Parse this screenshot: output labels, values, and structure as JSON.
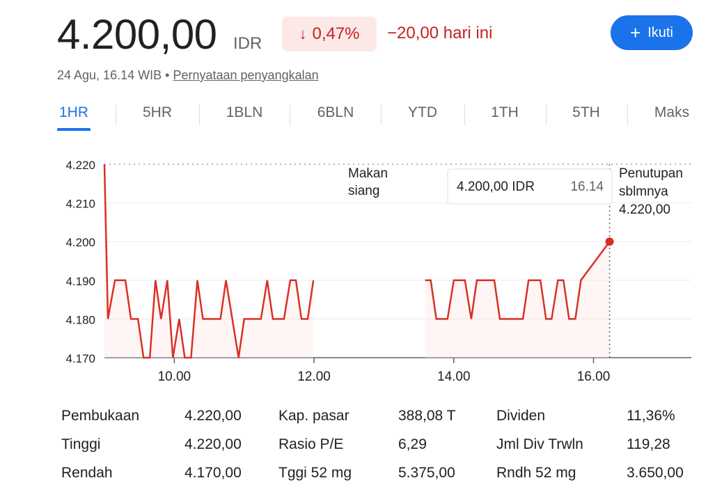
{
  "header": {
    "price": "4.200,00",
    "currency": "IDR",
    "change_percent": "0,47%",
    "change_direction": "down",
    "change_today": "−20,00 hari ini",
    "follow_label": "Ikuti",
    "timestamp": "24 Agu, 16.14 WIB",
    "separator": "•",
    "disclaimer_link": "Pernyataan penyangkalan"
  },
  "tabs": [
    {
      "label": "1HR",
      "active": true
    },
    {
      "label": "5HR"
    },
    {
      "label": "1BLN"
    },
    {
      "label": "6BLN"
    },
    {
      "label": "YTD"
    },
    {
      "label": "1TH"
    },
    {
      "label": "5TH"
    },
    {
      "label": "Maks"
    }
  ],
  "chart_data": {
    "type": "line",
    "y_tick_labels": [
      "4.220",
      "4.210",
      "4.200",
      "4.190",
      "4.180",
      "4.170"
    ],
    "y_ticks": [
      4220,
      4210,
      4200,
      4190,
      4180,
      4170
    ],
    "x_tick_labels": [
      "10.00",
      "12.00",
      "14.00",
      "16.00"
    ],
    "x_ticks": [
      10,
      12,
      14,
      16
    ],
    "xlim": [
      9,
      17.4
    ],
    "ylim": [
      4170,
      4220
    ],
    "line_color": "#d93025",
    "annotations": {
      "lunch": [
        "Makan",
        "siang"
      ],
      "previous_close": [
        "Penutupan",
        "sblmnya",
        "4.220,00"
      ],
      "tooltip_price": "4.200,00 IDR",
      "tooltip_time": "16.14"
    },
    "series_morning": [
      [
        9.0,
        4220
      ],
      [
        9.05,
        4180
      ],
      [
        9.15,
        4190
      ],
      [
        9.3,
        4190
      ],
      [
        9.38,
        4180
      ],
      [
        9.48,
        4180
      ],
      [
        9.56,
        4170
      ],
      [
        9.65,
        4170
      ],
      [
        9.73,
        4190
      ],
      [
        9.81,
        4180
      ],
      [
        9.9,
        4190
      ],
      [
        9.98,
        4170
      ],
      [
        10.07,
        4180
      ],
      [
        10.15,
        4170
      ],
      [
        10.24,
        4170
      ],
      [
        10.33,
        4190
      ],
      [
        10.41,
        4180
      ],
      [
        10.66,
        4180
      ],
      [
        10.74,
        4190
      ],
      [
        10.92,
        4170
      ],
      [
        11.0,
        4180
      ],
      [
        11.24,
        4180
      ],
      [
        11.33,
        4190
      ],
      [
        11.41,
        4180
      ],
      [
        11.57,
        4180
      ],
      [
        11.66,
        4190
      ],
      [
        11.74,
        4190
      ],
      [
        11.82,
        4180
      ],
      [
        11.91,
        4180
      ],
      [
        11.99,
        4190
      ]
    ],
    "series_afternoon": [
      [
        13.59,
        4190
      ],
      [
        13.67,
        4190
      ],
      [
        13.75,
        4180
      ],
      [
        13.91,
        4180
      ],
      [
        14.0,
        4190
      ],
      [
        14.16,
        4190
      ],
      [
        14.25,
        4180
      ],
      [
        14.33,
        4190
      ],
      [
        14.58,
        4190
      ],
      [
        14.66,
        4180
      ],
      [
        14.99,
        4180
      ],
      [
        15.07,
        4190
      ],
      [
        15.24,
        4190
      ],
      [
        15.32,
        4180
      ],
      [
        15.4,
        4180
      ],
      [
        15.49,
        4190
      ],
      [
        15.57,
        4190
      ],
      [
        15.65,
        4180
      ],
      [
        15.74,
        4180
      ],
      [
        15.82,
        4190
      ],
      [
        16.23,
        4200
      ]
    ],
    "current_point": [
      16.23,
      4200
    ]
  },
  "stats": [
    {
      "label": "Pembukaan",
      "value": "4.220,00"
    },
    {
      "label": "Tinggi",
      "value": "4.220,00"
    },
    {
      "label": "Rendah",
      "value": "4.170,00"
    },
    {
      "label": "Kap. pasar",
      "value": "388,08 T"
    },
    {
      "label": "Rasio P/E",
      "value": "6,29"
    },
    {
      "label": "Tggi 52 mg",
      "value": "5.375,00"
    },
    {
      "label": "Dividen",
      "value": "11,36%"
    },
    {
      "label": "Jml Div Trwln",
      "value": "119,28"
    },
    {
      "label": "Rndh 52 mg",
      "value": "3.650,00"
    }
  ]
}
